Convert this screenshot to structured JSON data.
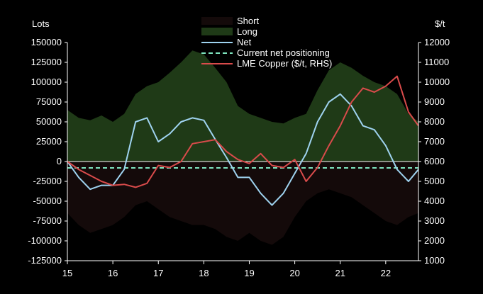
{
  "chart_data": {
    "type": "area",
    "title": "",
    "xlabel": "",
    "ylabel_left": "Lots",
    "ylabel_right": "$/t",
    "x_ticks": [
      "15",
      "16",
      "17",
      "18",
      "19",
      "20",
      "21",
      "22"
    ],
    "x_range": [
      2015.0,
      2022.72
    ],
    "ylim_left": [
      -125000,
      150000
    ],
    "ylim_right": [
      1000,
      12000
    ],
    "yticks_left": [
      "150000",
      "125000",
      "100000",
      "75000",
      "50000",
      "25000",
      "0",
      "-25000",
      "-50000",
      "-75000",
      "-100000",
      "-125000"
    ],
    "yticks_right": [
      "12000",
      "11000",
      "10000",
      "9000",
      "8000",
      "7000",
      "6000",
      "5000",
      "4000",
      "3000",
      "2000",
      "1000"
    ],
    "grid": false,
    "legend": {
      "position": "top-center",
      "entries": [
        {
          "label": "Short",
          "color": "#140a0a",
          "kind": "area"
        },
        {
          "label": "Long",
          "color": "#1f3a17",
          "kind": "area"
        },
        {
          "label": "Net",
          "color": "#9fd3f0",
          "kind": "line"
        },
        {
          "label": "Current net positioning",
          "color": "#7fe6c0",
          "kind": "dashed"
        },
        {
          "label": "LME Copper ($/t, RHS)",
          "color": "#d94b4b",
          "kind": "line"
        }
      ]
    },
    "current_net_positioning": -8000,
    "x": [
      2015.0,
      2015.25,
      2015.5,
      2015.75,
      2016.0,
      2016.25,
      2016.5,
      2016.75,
      2017.0,
      2017.25,
      2017.5,
      2017.75,
      2018.0,
      2018.25,
      2018.5,
      2018.75,
      2019.0,
      2019.25,
      2019.5,
      2019.75,
      2020.0,
      2020.25,
      2020.5,
      2020.75,
      2021.0,
      2021.25,
      2021.5,
      2021.75,
      2022.0,
      2022.25,
      2022.5,
      2022.72
    ],
    "series": [
      {
        "name": "Long",
        "axis": "left",
        "values": [
          65000,
          55000,
          52000,
          58000,
          50000,
          60000,
          85000,
          95000,
          100000,
          112000,
          125000,
          140000,
          135000,
          118000,
          100000,
          70000,
          60000,
          55000,
          50000,
          48000,
          55000,
          60000,
          90000,
          115000,
          125000,
          118000,
          108000,
          100000,
          95000,
          85000,
          60000,
          50000
        ]
      },
      {
        "name": "Short",
        "axis": "left",
        "values": [
          -65000,
          -80000,
          -90000,
          -85000,
          -80000,
          -70000,
          -55000,
          -50000,
          -60000,
          -70000,
          -75000,
          -80000,
          -80000,
          -85000,
          -95000,
          -100000,
          -90000,
          -100000,
          -105000,
          -95000,
          -70000,
          -50000,
          -40000,
          -35000,
          -40000,
          -45000,
          -55000,
          -65000,
          -75000,
          -80000,
          -70000,
          -65000
        ]
      },
      {
        "name": "Net",
        "axis": "left",
        "values": [
          0,
          -20000,
          -35000,
          -30000,
          -30000,
          -10000,
          50000,
          55000,
          25000,
          35000,
          50000,
          55000,
          52000,
          28000,
          5000,
          -20000,
          -20000,
          -40000,
          -55000,
          -40000,
          -15000,
          10000,
          50000,
          75000,
          85000,
          70000,
          45000,
          40000,
          20000,
          -10000,
          -25000,
          -10000
        ]
      },
      {
        "name": "LME Copper ($/t, RHS)",
        "axis": "right",
        "values": [
          6000,
          5600,
          5300,
          5000,
          4800,
          4850,
          4700,
          4900,
          5800,
          5700,
          6000,
          6900,
          7000,
          7100,
          6500,
          6100,
          5900,
          6400,
          5800,
          5700,
          6100,
          5000,
          5700,
          6800,
          7800,
          9000,
          9700,
          9500,
          9800,
          10300,
          8500,
          7800
        ]
      }
    ]
  }
}
